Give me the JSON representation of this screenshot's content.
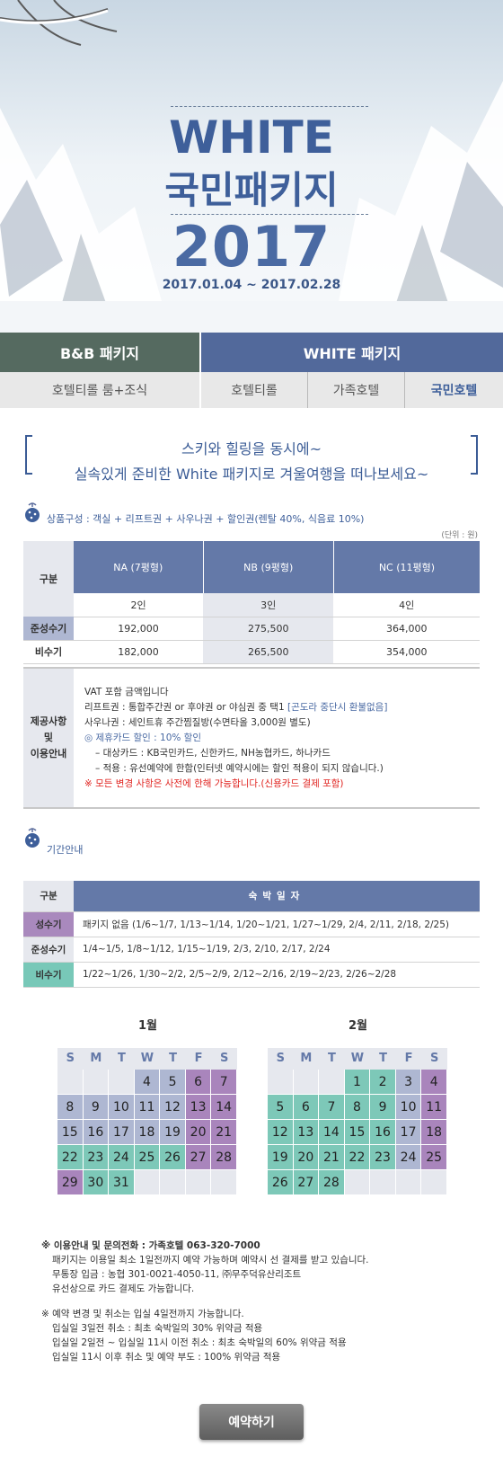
{
  "hero": {
    "title_en": "WHITE",
    "title_kr": "국민패키지",
    "year": "2017",
    "dates": "2017.01.04 ~ 2017.02.28"
  },
  "tabs": {
    "main": [
      "B&B 패키지",
      "WHITE 패키지"
    ],
    "sub": [
      "호텔티롤 룸+조식",
      "호텔티롤",
      "가족호텔",
      "국민호텔"
    ],
    "active_main": "WHITE 패키지",
    "active_sub": "국민호텔"
  },
  "slogan": {
    "line1": "스키와 힐링을 동시에~",
    "line2": "실속있게 준비한 White 패키지로 겨울여행을 떠나보세요~"
  },
  "product": {
    "label": "상품구성 : 객실 + 리프트권 + 사우나권 + 할인권(렌탈 40%, 식음료 10%)",
    "unit": "(단위 : 원)",
    "header_label": "구분",
    "columns": [
      "NA (7평형)",
      "NB (9평형)",
      "NC (11평형)"
    ],
    "persons": [
      "2인",
      "3인",
      "4인"
    ],
    "rows": [
      {
        "label": "준성수기",
        "values": [
          "192,000",
          "275,500",
          "364,000"
        ]
      },
      {
        "label": "비수기",
        "values": [
          "182,000",
          "265,500",
          "354,000"
        ]
      }
    ]
  },
  "info": {
    "label_lines": [
      "제공사항",
      "및",
      "이용안내"
    ],
    "line1": "VAT 포함 금액입니다",
    "line2a": "리프트권 : 통합주간권 or 후야권 or 야심권 중 택1 ",
    "line2b": "[곤도라 중단시 환불없음]",
    "line3": "사우나권 : 세인트휴 주간찜질방(수면타올 3,000원 별도)",
    "line4": "◎ 제휴카드 할인 : 10% 할인",
    "line5": "– 대상카드 : KB국민카드, 신한카드, NH농협카드, 하나카드",
    "line6": "– 적용 : 유선예약에 한함(인터넷 예약시에는 할인 적용이 되지 않습니다.)",
    "line7": "※ 모든 변경 사항은 사전에 한해 가능합니다.(신용카드 결제 포함)"
  },
  "period": {
    "label": "기간안내",
    "header_label": "구분",
    "header_dates": "숙박일자",
    "rows": [
      {
        "label": "성수기",
        "value": "패키지 없음 (1/6~1/7, 1/13~1/14, 1/20~1/21, 1/27~1/29, 2/4, 2/11, 2/18, 2/25)",
        "color": "#a989bd"
      },
      {
        "label": "준성수기",
        "value": "1/4~1/5, 1/8~1/12, 1/15~1/19, 2/3, 2/10, 2/17, 2/24",
        "color": "#e6e8ee"
      },
      {
        "label": "비수기",
        "value": "1/22~1/26, 1/30~2/2, 2/5~2/9, 2/12~2/16, 2/19~2/23, 2/26~2/28",
        "color": "#78c8b8"
      }
    ]
  },
  "calendars": {
    "weekdays": [
      "S",
      "M",
      "T",
      "W",
      "T",
      "F",
      "S"
    ],
    "jan": {
      "title": "1월",
      "weeks": [
        [
          [
            "",
            "e"
          ],
          [
            "",
            "e"
          ],
          [
            "",
            "e"
          ],
          [
            "4",
            "g"
          ],
          [
            "5",
            "g"
          ],
          [
            "6",
            "p"
          ],
          [
            "7",
            "p"
          ]
        ],
        [
          [
            "8",
            "g"
          ],
          [
            "9",
            "g"
          ],
          [
            "10",
            "g"
          ],
          [
            "11",
            "g"
          ],
          [
            "12",
            "g"
          ],
          [
            "13",
            "p"
          ],
          [
            "14",
            "p"
          ]
        ],
        [
          [
            "15",
            "g"
          ],
          [
            "16",
            "g"
          ],
          [
            "17",
            "g"
          ],
          [
            "18",
            "g"
          ],
          [
            "19",
            "g"
          ],
          [
            "20",
            "p"
          ],
          [
            "21",
            "p"
          ]
        ],
        [
          [
            "22",
            "t"
          ],
          [
            "23",
            "t"
          ],
          [
            "24",
            "t"
          ],
          [
            "25",
            "t"
          ],
          [
            "26",
            "t"
          ],
          [
            "27",
            "p"
          ],
          [
            "28",
            "p"
          ]
        ],
        [
          [
            "29",
            "p"
          ],
          [
            "30",
            "t"
          ],
          [
            "31",
            "t"
          ],
          [
            "",
            "e"
          ],
          [
            "",
            "e"
          ],
          [
            "",
            "e"
          ],
          [
            "",
            "e"
          ]
        ]
      ]
    },
    "feb": {
      "title": "2월",
      "weeks": [
        [
          [
            "",
            "e"
          ],
          [
            "",
            "e"
          ],
          [
            "",
            "e"
          ],
          [
            "1",
            "t"
          ],
          [
            "2",
            "t"
          ],
          [
            "3",
            "g"
          ],
          [
            "4",
            "p"
          ]
        ],
        [
          [
            "5",
            "t"
          ],
          [
            "6",
            "t"
          ],
          [
            "7",
            "t"
          ],
          [
            "8",
            "t"
          ],
          [
            "9",
            "t"
          ],
          [
            "10",
            "g"
          ],
          [
            "11",
            "p"
          ]
        ],
        [
          [
            "12",
            "t"
          ],
          [
            "13",
            "t"
          ],
          [
            "14",
            "t"
          ],
          [
            "15",
            "t"
          ],
          [
            "16",
            "t"
          ],
          [
            "17",
            "g"
          ],
          [
            "18",
            "p"
          ]
        ],
        [
          [
            "19",
            "t"
          ],
          [
            "20",
            "t"
          ],
          [
            "21",
            "t"
          ],
          [
            "22",
            "t"
          ],
          [
            "23",
            "t"
          ],
          [
            "24",
            "g"
          ],
          [
            "25",
            "p"
          ]
        ],
        [
          [
            "26",
            "t"
          ],
          [
            "27",
            "t"
          ],
          [
            "28",
            "t"
          ],
          [
            "",
            "e"
          ],
          [
            "",
            "e"
          ],
          [
            "",
            "e"
          ],
          [
            "",
            "e"
          ]
        ]
      ]
    }
  },
  "notes": {
    "n1_title": "※ 이용안내 및 문의전화 : 가족호텔 063-320-7000",
    "n1_l1": "패키지는 이용일 최소 1일전까지 예약 가능하며 예약시 선 결제를 받고 있습니다.",
    "n1_l2": "무통장 입금 : 농협 301-0021-4050-11, ㈜무주덕유산리조트",
    "n1_l3": "유선상으로 카드 결제도 가능합니다.",
    "n2_title": "※ 예약 변경 및 취소는 입실 4일전까지 가능합니다.",
    "n2_l1": "입실일 3일전 취소 : 최초 숙박일의 30% 위약금 적용",
    "n2_l2": "입실일 2일전 ~ 입실일 11시 이전 취소 : 최초 숙박일의 60% 위약금 적용",
    "n2_l3": "입실일 11시 이후 취소 및 예약 부도 : 100% 위약금 적용"
  },
  "button": {
    "label": "예약하기"
  },
  "colors": {
    "navy": "#3e5f9a",
    "header": "#6479a8",
    "purple": "#a989bd",
    "teal": "#78c8b8",
    "gray_cell": "#e6e8ee"
  }
}
